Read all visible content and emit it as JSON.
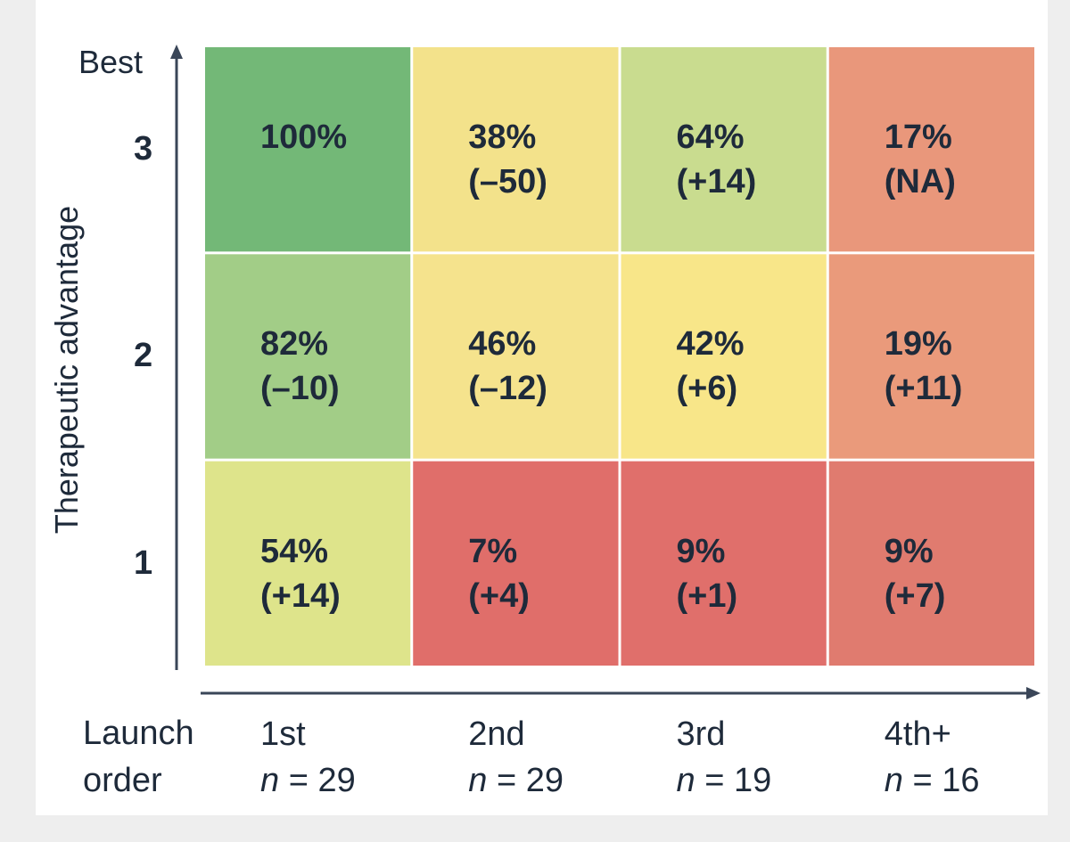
{
  "chart_data": {
    "type": "heatmap",
    "y_axis_label": "Therapeutic advantage",
    "y_top_label": "Best",
    "x_axis_label": "Launch order",
    "rows": [
      "3",
      "2",
      "1"
    ],
    "categories": [
      "1st",
      "2nd",
      "3rd",
      "4th+"
    ],
    "sample_sizes": [
      29,
      29,
      19,
      16
    ],
    "sample_size_labels": [
      "n = 29",
      "n = 29",
      "n = 19",
      "n = 16"
    ],
    "values": [
      [
        100,
        38,
        64,
        17
      ],
      [
        82,
        46,
        42,
        19
      ],
      [
        54,
        7,
        9,
        9
      ]
    ],
    "value_labels": [
      [
        "100%",
        "38%",
        "64%",
        "17%"
      ],
      [
        "82%",
        "46%",
        "42%",
        "19%"
      ],
      [
        "54%",
        "7%",
        "9%",
        "9%"
      ]
    ],
    "changes": [
      [
        null,
        "(–50)",
        "(+14)",
        "(NA)"
      ],
      [
        "(–10)",
        "(–12)",
        "(+6)",
        "(+11)"
      ],
      [
        "(+14)",
        "(+4)",
        "(+1)",
        "(+7)"
      ]
    ],
    "colors": [
      [
        "#73b877",
        "#f3e28b",
        "#c9dc8f",
        "#e9977b"
      ],
      [
        "#a2cd87",
        "#f5e38d",
        "#f8e689",
        "#ea9a7b"
      ],
      [
        "#dee48b",
        "#e06e6a",
        "#e06f6b",
        "#e07b6f"
      ]
    ]
  }
}
